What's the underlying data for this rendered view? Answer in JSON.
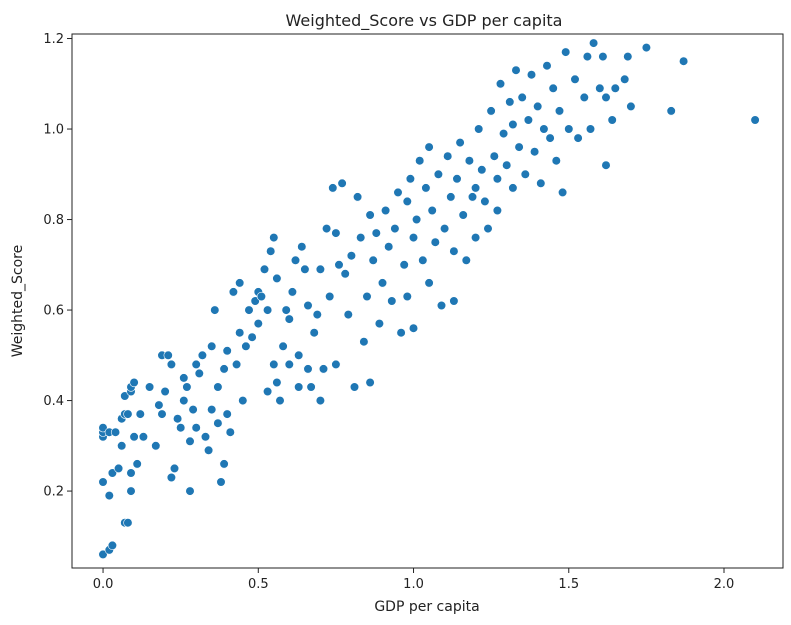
{
  "chart_data": {
    "type": "scatter",
    "title": "Weighted_Score vs GDP per capita",
    "xlabel": "GDP per capita",
    "ylabel": "Weighted_Score",
    "xlim": [
      -0.1,
      2.19
    ],
    "ylim": [
      0.03,
      1.21
    ],
    "xticks": [
      "0.0",
      "0.5",
      "1.0",
      "1.5",
      "2.0"
    ],
    "yticks": [
      "0.2",
      "0.4",
      "0.6",
      "0.8",
      "1.0",
      "1.2"
    ],
    "grid": false,
    "marker_color": "#1f77b4",
    "series": [
      {
        "points": [
          [
            0.0,
            0.06
          ],
          [
            0.02,
            0.07
          ],
          [
            0.03,
            0.08
          ],
          [
            0.0,
            0.22
          ],
          [
            0.02,
            0.19
          ],
          [
            0.03,
            0.24
          ],
          [
            0.05,
            0.25
          ],
          [
            0.07,
            0.13
          ],
          [
            0.08,
            0.13
          ],
          [
            0.09,
            0.2
          ],
          [
            0.09,
            0.24
          ],
          [
            0.11,
            0.26
          ],
          [
            0.0,
            0.32
          ],
          [
            0.0,
            0.33
          ],
          [
            0.0,
            0.34
          ],
          [
            0.02,
            0.33
          ],
          [
            0.04,
            0.33
          ],
          [
            0.06,
            0.3
          ],
          [
            0.06,
            0.36
          ],
          [
            0.07,
            0.37
          ],
          [
            0.08,
            0.37
          ],
          [
            0.1,
            0.32
          ],
          [
            0.07,
            0.41
          ],
          [
            0.09,
            0.42
          ],
          [
            0.09,
            0.43
          ],
          [
            0.1,
            0.44
          ],
          [
            0.12,
            0.37
          ],
          [
            0.13,
            0.32
          ],
          [
            0.15,
            0.43
          ],
          [
            0.17,
            0.3
          ],
          [
            0.18,
            0.39
          ],
          [
            0.19,
            0.37
          ],
          [
            0.19,
            0.5
          ],
          [
            0.2,
            0.42
          ],
          [
            0.21,
            0.5
          ],
          [
            0.22,
            0.48
          ],
          [
            0.22,
            0.23
          ],
          [
            0.23,
            0.25
          ],
          [
            0.24,
            0.36
          ],
          [
            0.25,
            0.34
          ],
          [
            0.26,
            0.4
          ],
          [
            0.26,
            0.45
          ],
          [
            0.27,
            0.43
          ],
          [
            0.28,
            0.2
          ],
          [
            0.28,
            0.31
          ],
          [
            0.29,
            0.38
          ],
          [
            0.3,
            0.34
          ],
          [
            0.3,
            0.48
          ],
          [
            0.31,
            0.46
          ],
          [
            0.32,
            0.5
          ],
          [
            0.33,
            0.32
          ],
          [
            0.34,
            0.29
          ],
          [
            0.35,
            0.38
          ],
          [
            0.35,
            0.52
          ],
          [
            0.36,
            0.6
          ],
          [
            0.37,
            0.43
          ],
          [
            0.37,
            0.35
          ],
          [
            0.38,
            0.22
          ],
          [
            0.39,
            0.26
          ],
          [
            0.39,
            0.47
          ],
          [
            0.4,
            0.51
          ],
          [
            0.4,
            0.37
          ],
          [
            0.41,
            0.33
          ],
          [
            0.42,
            0.64
          ],
          [
            0.43,
            0.48
          ],
          [
            0.44,
            0.66
          ],
          [
            0.44,
            0.55
          ],
          [
            0.45,
            0.4
          ],
          [
            0.46,
            0.52
          ],
          [
            0.47,
            0.6
          ],
          [
            0.48,
            0.54
          ],
          [
            0.49,
            0.62
          ],
          [
            0.5,
            0.57
          ],
          [
            0.5,
            0.64
          ],
          [
            0.51,
            0.63
          ],
          [
            0.52,
            0.69
          ],
          [
            0.53,
            0.42
          ],
          [
            0.53,
            0.6
          ],
          [
            0.54,
            0.73
          ],
          [
            0.55,
            0.48
          ],
          [
            0.55,
            0.76
          ],
          [
            0.56,
            0.44
          ],
          [
            0.56,
            0.67
          ],
          [
            0.57,
            0.4
          ],
          [
            0.58,
            0.52
          ],
          [
            0.59,
            0.6
          ],
          [
            0.6,
            0.58
          ],
          [
            0.6,
            0.48
          ],
          [
            0.61,
            0.64
          ],
          [
            0.62,
            0.71
          ],
          [
            0.63,
            0.43
          ],
          [
            0.63,
            0.5
          ],
          [
            0.64,
            0.74
          ],
          [
            0.65,
            0.69
          ],
          [
            0.66,
            0.47
          ],
          [
            0.66,
            0.61
          ],
          [
            0.67,
            0.43
          ],
          [
            0.68,
            0.55
          ],
          [
            0.69,
            0.59
          ],
          [
            0.7,
            0.69
          ],
          [
            0.7,
            0.4
          ],
          [
            0.71,
            0.47
          ],
          [
            0.72,
            0.78
          ],
          [
            0.73,
            0.63
          ],
          [
            0.74,
            0.87
          ],
          [
            0.75,
            0.77
          ],
          [
            0.75,
            0.48
          ],
          [
            0.76,
            0.7
          ],
          [
            0.77,
            0.88
          ],
          [
            0.78,
            0.68
          ],
          [
            0.79,
            0.59
          ],
          [
            0.8,
            0.72
          ],
          [
            0.81,
            0.43
          ],
          [
            0.82,
            0.85
          ],
          [
            0.83,
            0.76
          ],
          [
            0.84,
            0.53
          ],
          [
            0.85,
            0.63
          ],
          [
            0.86,
            0.81
          ],
          [
            0.86,
            0.44
          ],
          [
            0.87,
            0.71
          ],
          [
            0.88,
            0.77
          ],
          [
            0.89,
            0.57
          ],
          [
            0.9,
            0.66
          ],
          [
            0.91,
            0.82
          ],
          [
            0.92,
            0.74
          ],
          [
            0.93,
            0.62
          ],
          [
            0.94,
            0.78
          ],
          [
            0.95,
            0.86
          ],
          [
            0.96,
            0.55
          ],
          [
            0.97,
            0.7
          ],
          [
            0.98,
            0.84
          ],
          [
            0.98,
            0.63
          ],
          [
            0.99,
            0.89
          ],
          [
            1.0,
            0.76
          ],
          [
            1.0,
            0.56
          ],
          [
            1.01,
            0.8
          ],
          [
            1.02,
            0.93
          ],
          [
            1.03,
            0.71
          ],
          [
            1.04,
            0.87
          ],
          [
            1.05,
            0.66
          ],
          [
            1.05,
            0.96
          ],
          [
            1.06,
            0.82
          ],
          [
            1.07,
            0.75
          ],
          [
            1.08,
            0.9
          ],
          [
            1.09,
            0.61
          ],
          [
            1.1,
            0.78
          ],
          [
            1.11,
            0.94
          ],
          [
            1.12,
            0.85
          ],
          [
            1.13,
            0.73
          ],
          [
            1.13,
            0.62
          ],
          [
            1.14,
            0.89
          ],
          [
            1.15,
            0.97
          ],
          [
            1.16,
            0.81
          ],
          [
            1.17,
            0.71
          ],
          [
            1.18,
            0.93
          ],
          [
            1.19,
            0.85
          ],
          [
            1.2,
            0.76
          ],
          [
            1.2,
            0.87
          ],
          [
            1.21,
            1.0
          ],
          [
            1.22,
            0.91
          ],
          [
            1.23,
            0.84
          ],
          [
            1.24,
            0.78
          ],
          [
            1.25,
            1.04
          ],
          [
            1.26,
            0.94
          ],
          [
            1.27,
            0.89
          ],
          [
            1.27,
            0.82
          ],
          [
            1.28,
            1.1
          ],
          [
            1.29,
            0.99
          ],
          [
            1.3,
            0.92
          ],
          [
            1.31,
            1.06
          ],
          [
            1.32,
            0.87
          ],
          [
            1.32,
            1.01
          ],
          [
            1.33,
            1.13
          ],
          [
            1.34,
            0.96
          ],
          [
            1.35,
            1.07
          ],
          [
            1.36,
            0.9
          ],
          [
            1.37,
            1.02
          ],
          [
            1.38,
            1.12
          ],
          [
            1.39,
            0.95
          ],
          [
            1.4,
            1.05
          ],
          [
            1.41,
            0.88
          ],
          [
            1.42,
            1.0
          ],
          [
            1.43,
            1.14
          ],
          [
            1.44,
            0.98
          ],
          [
            1.45,
            1.09
          ],
          [
            1.46,
            0.93
          ],
          [
            1.47,
            1.04
          ],
          [
            1.48,
            0.86
          ],
          [
            1.49,
            1.17
          ],
          [
            1.5,
            1.0
          ],
          [
            1.52,
            1.11
          ],
          [
            1.53,
            0.98
          ],
          [
            1.55,
            1.07
          ],
          [
            1.56,
            1.16
          ],
          [
            1.57,
            1.0
          ],
          [
            1.58,
            1.19
          ],
          [
            1.6,
            1.09
          ],
          [
            1.61,
            1.16
          ],
          [
            1.62,
            0.92
          ],
          [
            1.62,
            1.07
          ],
          [
            1.64,
            1.02
          ],
          [
            1.65,
            1.09
          ],
          [
            1.68,
            1.11
          ],
          [
            1.69,
            1.16
          ],
          [
            1.7,
            1.05
          ],
          [
            1.75,
            1.18
          ],
          [
            1.83,
            1.04
          ],
          [
            1.87,
            1.15
          ],
          [
            2.1,
            1.02
          ]
        ]
      }
    ]
  }
}
